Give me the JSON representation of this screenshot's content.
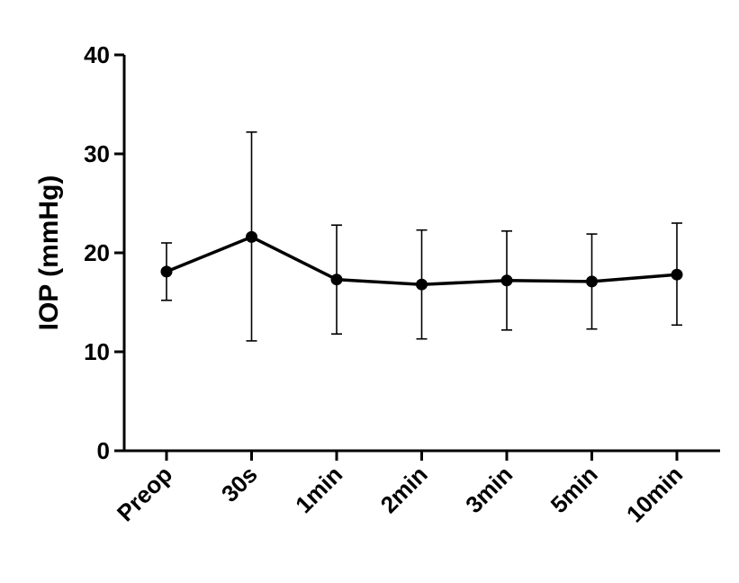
{
  "chart_data": {
    "type": "line",
    "title": "",
    "xlabel": "",
    "ylabel": "IOP (mmHg)",
    "ylim": [
      0,
      40
    ],
    "yticks": [
      0,
      10,
      20,
      30,
      40
    ],
    "grid": false,
    "categories": [
      "Preop",
      "30s",
      "1min",
      "2min",
      "3min",
      "5min",
      "10min"
    ],
    "series": [
      {
        "values": [
          18.1,
          21.6,
          17.3,
          16.8,
          17.2,
          17.1,
          17.8
        ],
        "error_upper": [
          21.0,
          32.2,
          22.8,
          22.3,
          22.2,
          21.9,
          23.0
        ],
        "error_lower": [
          15.2,
          11.1,
          11.8,
          11.3,
          12.2,
          12.3,
          12.7
        ],
        "color": "#000000"
      }
    ]
  }
}
